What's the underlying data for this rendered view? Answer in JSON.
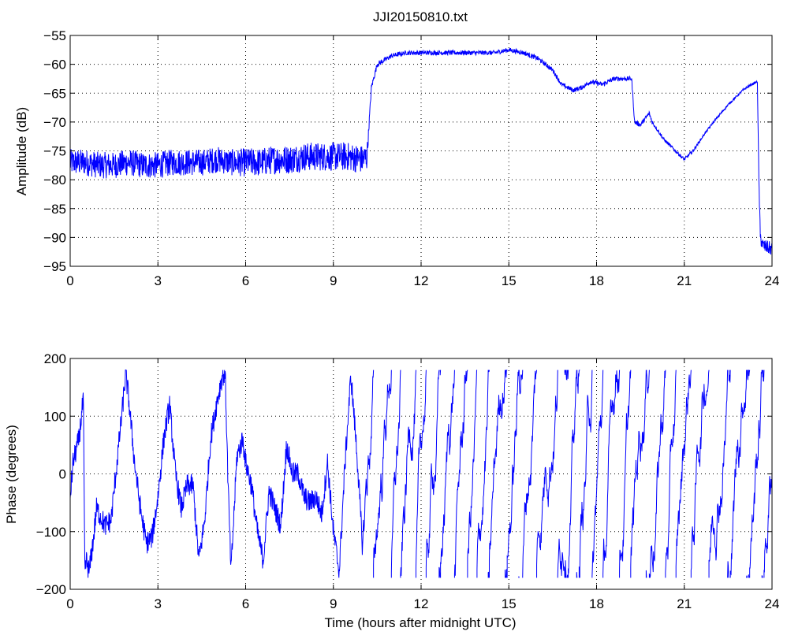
{
  "chart_data": [
    {
      "type": "line",
      "title": "JJI20150810.txt",
      "xlabel": "",
      "ylabel": "Amplitude (dB)",
      "xlim": [
        0,
        24
      ],
      "ylim": [
        -95,
        -55
      ],
      "xticks": [
        0,
        3,
        6,
        9,
        12,
        15,
        18,
        21,
        24
      ],
      "xtick_labels": [
        "0",
        "3",
        "6",
        "9",
        "12",
        "15",
        "18",
        "21",
        "24"
      ],
      "yticks": [
        -95,
        -90,
        -85,
        -80,
        -75,
        -70,
        -65,
        -60,
        -55
      ],
      "ytick_labels": [
        "−95",
        "−90",
        "−85",
        "−80",
        "−75",
        "−70",
        "−65",
        "−60",
        "−55"
      ],
      "grid": true,
      "grid_style": "dotted",
      "line_color": "#0000ff",
      "series": [
        {
          "x": [
            0,
            0.5,
            1,
            1.5,
            2,
            2.5,
            3,
            3.5,
            4,
            4.5,
            5,
            5.5,
            6,
            6.5,
            7,
            7.5,
            8,
            8.5,
            9,
            9.5,
            10,
            10.15,
            10.2,
            10.3,
            10.5,
            11,
            11.5,
            12,
            12.5,
            13,
            13.5,
            14,
            14.5,
            15,
            15.5,
            16,
            16.5,
            16.8,
            17.2,
            17.5,
            17.8,
            18.2,
            18.6,
            19,
            19.2,
            19.3,
            19.5,
            19.8,
            19.9,
            20.1,
            20.3,
            20.6,
            21,
            21.3,
            21.7,
            22,
            22.5,
            23,
            23.3,
            23.5,
            23.55,
            23.6,
            23.7,
            24
          ],
          "y": [
            -77,
            -77,
            -77.5,
            -77.5,
            -77,
            -77.5,
            -77.5,
            -77,
            -77,
            -77,
            -76.5,
            -77,
            -77,
            -77,
            -76.5,
            -76.5,
            -76,
            -76,
            -76,
            -76,
            -76.5,
            -76,
            -72,
            -64,
            -60,
            -58.5,
            -58,
            -58,
            -58,
            -58,
            -58,
            -58,
            -58,
            -57.5,
            -58,
            -59,
            -61,
            -63.5,
            -64.5,
            -64,
            -63,
            -63.5,
            -62.5,
            -62.5,
            -62.5,
            -70,
            -70.5,
            -68.5,
            -70,
            -71.5,
            -73,
            -74.5,
            -76.5,
            -75,
            -72,
            -70,
            -67,
            -64.5,
            -63.5,
            -63,
            -80,
            -90,
            -91.5,
            -92
          ],
          "noise_amplitude": [
            2.3,
            2.3,
            2.3,
            2.3,
            2.3,
            2.3,
            2.3,
            2.3,
            2.3,
            2.3,
            2.3,
            2.3,
            2.5,
            2.5,
            2.5,
            2.5,
            2.5,
            2.5,
            2.5,
            2.5,
            2.5,
            2.5,
            0.8,
            0.5,
            0.5,
            0.4,
            0.4,
            0.4,
            0.4,
            0.4,
            0.4,
            0.4,
            0.4,
            0.4,
            0.4,
            0.4,
            0.4,
            0.4,
            0.4,
            0.4,
            0.4,
            0.4,
            0.4,
            0.4,
            0.4,
            0.4,
            0.4,
            0.4,
            0.4,
            0.3,
            0.3,
            0.3,
            0.3,
            0.3,
            0.2,
            0.2,
            0.2,
            0.2,
            0.2,
            0.2,
            1,
            1.2,
            1.2,
            1.2
          ]
        }
      ]
    },
    {
      "type": "line",
      "title": "",
      "xlabel": "Time (hours after midnight UTC)",
      "ylabel": "Phase (degrees)",
      "xlim": [
        0,
        24
      ],
      "ylim": [
        -200,
        200
      ],
      "xticks": [
        0,
        3,
        6,
        9,
        12,
        15,
        18,
        21,
        24
      ],
      "xtick_labels": [
        "0",
        "3",
        "6",
        "9",
        "12",
        "15",
        "18",
        "21",
        "24"
      ],
      "yticks": [
        -200,
        -100,
        0,
        100,
        200
      ],
      "ytick_labels": [
        "−200",
        "−100",
        "0",
        "100",
        "200"
      ],
      "grid": true,
      "grid_style": "dotted",
      "line_color": "#0000ff",
      "series": [
        {
          "x": [
            0,
            0.1,
            0.3,
            0.45,
            0.5,
            0.55,
            0.65,
            0.8,
            0.9,
            1.0,
            1.2,
            1.4,
            1.6,
            1.8,
            1.9,
            2.0,
            2.2,
            2.4,
            2.6,
            2.8,
            3.0,
            3.2,
            3.4,
            3.6,
            3.8,
            4.0,
            4.2,
            4.4,
            4.6,
            4.8,
            5.0,
            5.2,
            5.3,
            5.4,
            5.5,
            5.7,
            5.9,
            6.0,
            6.2,
            6.4,
            6.6,
            6.8,
            7.0,
            7.2,
            7.4,
            7.6,
            7.8,
            8.0,
            8.2,
            8.4,
            8.6,
            8.8,
            9.0,
            9.2,
            9.4,
            9.6,
            9.8,
            10.0
          ],
          "y": [
            -40,
            20,
            60,
            130,
            -170,
            -150,
            -170,
            -110,
            -60,
            -70,
            -90,
            -80,
            20,
            120,
            175,
            130,
            20,
            -60,
            -120,
            -110,
            -40,
            60,
            120,
            0,
            -60,
            -20,
            -20,
            -150,
            -80,
            60,
            120,
            170,
            175,
            -20,
            -170,
            30,
            60,
            20,
            -20,
            -100,
            -150,
            -30,
            -60,
            -90,
            50,
            0,
            0,
            -40,
            -50,
            -40,
            -70,
            20,
            -100,
            -170,
            20,
            170,
            40,
            -130
          ]
        }
      ],
      "wrapped_region": {
        "x_start": 10,
        "x_end": 24,
        "description": "phase wraps rapidly between -180 and 180"
      }
    }
  ]
}
